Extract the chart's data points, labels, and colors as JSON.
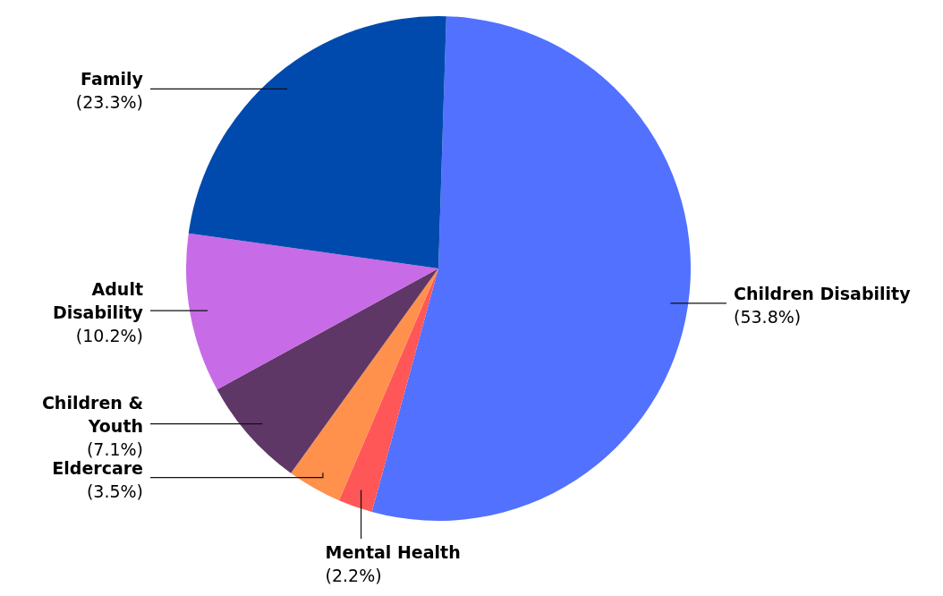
{
  "chart_data": {
    "type": "pie",
    "categories": [
      "Children Disability",
      "Mental Health",
      "Eldercare",
      "Children & Youth",
      "Adult Disability",
      "Family"
    ],
    "values": [
      53.8,
      2.2,
      3.5,
      7.1,
      10.2,
      23.3
    ],
    "value_labels": [
      "(53.8%)",
      "(2.2%)",
      "(3.5%)",
      "(7.1%)",
      "(10.2%)",
      "(23.3%)"
    ],
    "colors": [
      "#5271ff",
      "#ff5757",
      "#ff914d",
      "#5e3766",
      "#c86be6",
      "#004aad"
    ]
  }
}
